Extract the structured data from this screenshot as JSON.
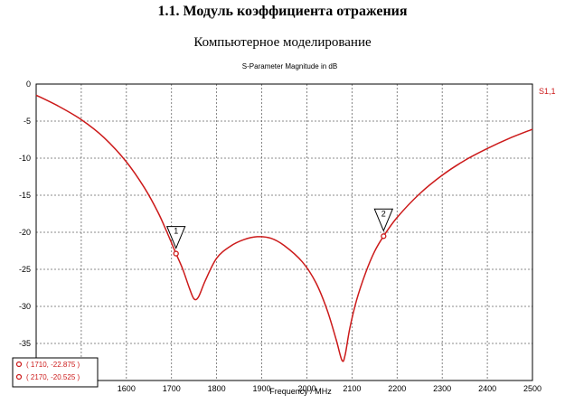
{
  "document": {
    "heading": "1.1. Модуль коэффициента отражения",
    "subheading": "Компьютерное моделирование"
  },
  "chart_data": {
    "type": "line",
    "title": "S-Parameter Magnitude in dB",
    "xlabel": "Frequency / MHz",
    "ylabel": "",
    "xlim": [
      1400,
      2500
    ],
    "ylim": [
      -40,
      0
    ],
    "x_ticks": [
      1600,
      1700,
      1800,
      1900,
      2000,
      2100,
      2200,
      2300,
      2400,
      2500
    ],
    "y_ticks": [
      0,
      -5,
      -10,
      -15,
      -20,
      -25,
      -30,
      -35
    ],
    "grid": true,
    "series": [
      {
        "name": "S1,1",
        "color": "#cc1a1a",
        "points": [
          [
            1400,
            -1.5
          ],
          [
            1450,
            -3.0
          ],
          [
            1500,
            -4.8
          ],
          [
            1550,
            -7.2
          ],
          [
            1600,
            -10.5
          ],
          [
            1640,
            -14.0
          ],
          [
            1670,
            -17.3
          ],
          [
            1690,
            -20.0
          ],
          [
            1710,
            -22.875
          ],
          [
            1725,
            -25.0
          ],
          [
            1740,
            -27.6
          ],
          [
            1750,
            -29.0
          ],
          [
            1760,
            -28.7
          ],
          [
            1775,
            -26.5
          ],
          [
            1800,
            -23.5
          ],
          [
            1830,
            -21.9
          ],
          [
            1860,
            -21.0
          ],
          [
            1890,
            -20.6
          ],
          [
            1920,
            -20.8
          ],
          [
            1950,
            -21.8
          ],
          [
            1990,
            -24.0
          ],
          [
            2020,
            -26.8
          ],
          [
            2045,
            -30.5
          ],
          [
            2065,
            -34.5
          ],
          [
            2078,
            -37.3
          ],
          [
            2085,
            -36.5
          ],
          [
            2095,
            -33.0
          ],
          [
            2110,
            -29.2
          ],
          [
            2130,
            -25.5
          ],
          [
            2150,
            -22.6
          ],
          [
            2170,
            -20.525
          ],
          [
            2200,
            -18.0
          ],
          [
            2250,
            -14.8
          ],
          [
            2300,
            -12.3
          ],
          [
            2350,
            -10.3
          ],
          [
            2400,
            -8.7
          ],
          [
            2450,
            -7.3
          ],
          [
            2500,
            -6.1
          ]
        ]
      }
    ],
    "markers": [
      {
        "label": "1",
        "x": 1710,
        "y": -22.875
      },
      {
        "label": "2",
        "x": 2170,
        "y": -20.525
      }
    ],
    "marker_readouts": [
      "( 1710, -22.875 )",
      "( 2170, -20.525 )"
    ]
  }
}
